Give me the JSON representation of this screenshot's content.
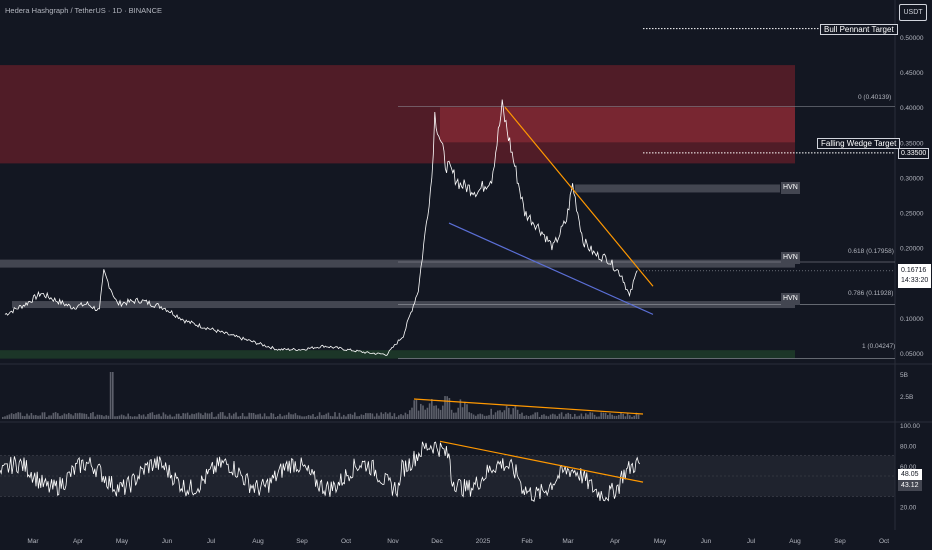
{
  "header": {
    "title": "Hedera Hashgraph / TetherUS · 1D · BINANCE",
    "currency_button": "USDT"
  },
  "annotations": {
    "bull_pennant_target": "Bull Pennant Target",
    "falling_wedge_target": "Falling Wedge Target",
    "falling_wedge_value": "0.33500",
    "hvn_labels": [
      "HVN",
      "HVN",
      "HVN"
    ],
    "fib_0": "0 (0.40139)",
    "fib_618": "0.618 (0.17958)",
    "fib_786": "0.786 (0.11928)",
    "fib_1": "1 (0.04247)",
    "current_price": "0.16716",
    "countdown": "14:33:20"
  },
  "colors": {
    "background": "#131722",
    "red_zone": "#7a1f2b",
    "green_zone": "#1e3a29",
    "hvn_band": "#434651",
    "orange_trend": "#ff9800",
    "blue_trend": "#5b6fd6",
    "price_line": "#ffffff"
  },
  "chart_data": [
    {
      "type": "line",
      "name": "price",
      "x_ticks": [
        "Mar",
        "Apr",
        "May",
        "Jun",
        "Jul",
        "Aug",
        "Sep",
        "Oct",
        "Nov",
        "Dec",
        "2025",
        "Feb",
        "Mar",
        "Apr",
        "May",
        "Jun",
        "Jul",
        "Aug",
        "Sep",
        "Oct"
      ],
      "y_ticks": [
        "0.50000",
        "0.45000",
        "0.40000",
        "0.35000",
        "0.30000",
        "0.25000",
        "0.20000",
        "0.15000",
        "0.10000",
        "0.05000"
      ],
      "ylim": [
        0.04,
        0.52
      ],
      "x": [
        "2024-02-20",
        "2024-03-05",
        "2024-03-15",
        "2024-03-25",
        "2024-04-05",
        "2024-04-15",
        "2024-04-23",
        "2024-04-26",
        "2024-05-05",
        "2024-05-20",
        "2024-06-05",
        "2024-06-20",
        "2024-07-05",
        "2024-07-20",
        "2024-08-05",
        "2024-08-20",
        "2024-09-05",
        "2024-09-20",
        "2024-10-05",
        "2024-10-20",
        "2024-11-01",
        "2024-11-12",
        "2024-11-22",
        "2024-12-01",
        "2024-12-03",
        "2024-12-10",
        "2024-12-20",
        "2025-01-01",
        "2025-01-10",
        "2025-01-17",
        "2025-01-22",
        "2025-02-01",
        "2025-02-10",
        "2025-02-20",
        "2025-03-01",
        "2025-03-05",
        "2025-03-12",
        "2025-03-20",
        "2025-03-28",
        "2025-04-07",
        "2025-04-12",
        "2025-04-17"
      ],
      "y": [
        0.105,
        0.12,
        0.135,
        0.125,
        0.115,
        0.12,
        0.11,
        0.165,
        0.12,
        0.125,
        0.115,
        0.095,
        0.085,
        0.075,
        0.065,
        0.055,
        0.055,
        0.06,
        0.055,
        0.05,
        0.048,
        0.075,
        0.14,
        0.3,
        0.39,
        0.32,
        0.29,
        0.28,
        0.3,
        0.4,
        0.35,
        0.25,
        0.23,
        0.2,
        0.24,
        0.29,
        0.21,
        0.19,
        0.185,
        0.16,
        0.13,
        0.167
      ],
      "fib_levels": [
        {
          "label": "0",
          "value": 0.40139
        },
        {
          "label": "0.618",
          "value": 0.17958
        },
        {
          "label": "0.786",
          "value": 0.11928
        },
        {
          "label": "1",
          "value": 0.04247
        }
      ],
      "zones": [
        {
          "kind": "resistance",
          "from": 0.32,
          "to": 0.46
        },
        {
          "kind": "support",
          "from": 0.042,
          "to": 0.054
        }
      ],
      "hvn": [
        0.285,
        0.18,
        0.12
      ],
      "target_lines": [
        0.5,
        0.335
      ]
    },
    {
      "type": "bar",
      "name": "volume",
      "y_ticks": [
        "5B",
        "2.5B"
      ],
      "trend_line": "falling"
    },
    {
      "type": "line",
      "name": "rsi",
      "y_ticks": [
        "100.00",
        "80.00",
        "60.00",
        "40.00",
        "20.00"
      ],
      "ylim": [
        0,
        100
      ],
      "values_shown": [
        "48.05",
        "43.12"
      ]
    }
  ]
}
